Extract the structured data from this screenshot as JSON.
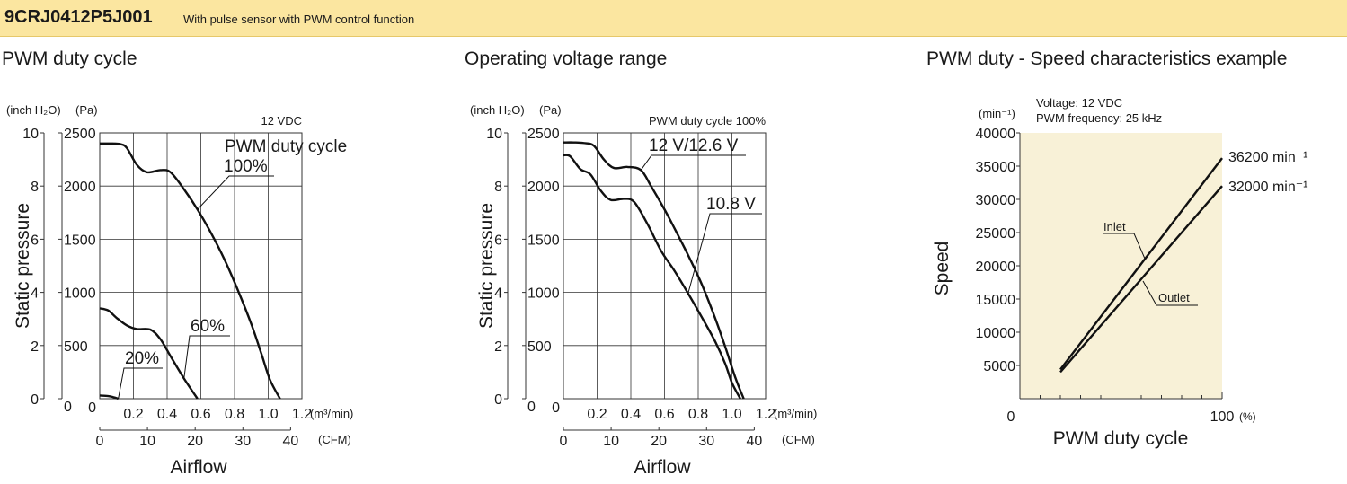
{
  "header": {
    "model": "9CRJ0412P5J001",
    "description": "With pulse sensor with PWM control function",
    "bg_color": "#fbe6a0"
  },
  "chart_data": [
    {
      "type": "line",
      "title": "PWM duty cycle",
      "annotation": "12 VDC",
      "legend_title": "PWM duty cycle",
      "xlabel": "Airflow",
      "ylabel": "Static pressure",
      "x_unit_primary": "(m³/min)",
      "x_unit_secondary": "(CFM)",
      "y_unit_primary": "(Pa)",
      "y_unit_secondary": "(inch H₂O)",
      "xlim": [
        0,
        1.2
      ],
      "ylim": [
        0,
        2500
      ],
      "x_ticks": [
        "0",
        "0.2",
        "0.4",
        "0.6",
        "0.8",
        "1.0",
        "1.2"
      ],
      "x_ticks_cfm": [
        "0",
        "10",
        "20",
        "30",
        "40"
      ],
      "y_ticks": [
        "0",
        "500",
        "1000",
        "1500",
        "2000",
        "2500"
      ],
      "y_ticks_inch": [
        "0",
        "2",
        "4",
        "6",
        "8",
        "10"
      ],
      "series": [
        {
          "name": "100%",
          "label_at": [
            1.0,
            2100
          ],
          "x": [
            0,
            0.06,
            0.12,
            0.16,
            0.22,
            0.28,
            0.36,
            0.42,
            0.5,
            0.58,
            0.66,
            0.74,
            0.82,
            0.9,
            0.96,
            1.01,
            1.07
          ],
          "y": [
            2400,
            2400,
            2395,
            2360,
            2200,
            2130,
            2150,
            2130,
            1970,
            1780,
            1560,
            1310,
            1020,
            700,
            420,
            180,
            0
          ]
        },
        {
          "name": "60%",
          "label_at": [
            0.59,
            630
          ],
          "x": [
            0,
            0.05,
            0.1,
            0.16,
            0.22,
            0.3,
            0.36,
            0.42,
            0.5,
            0.58
          ],
          "y": [
            850,
            830,
            760,
            690,
            655,
            650,
            560,
            400,
            190,
            0
          ]
        },
        {
          "name": "20%",
          "label_at": [
            0.26,
            370
          ],
          "x": [
            0,
            0.05,
            0.08,
            0.11
          ],
          "y": [
            30,
            25,
            15,
            0
          ]
        }
      ]
    },
    {
      "type": "line",
      "title": "Operating voltage range",
      "annotation": "PWM duty cycle 100%",
      "xlabel": "Airflow",
      "ylabel": "Static pressure",
      "x_unit_primary": "(m³/min)",
      "x_unit_secondary": "(CFM)",
      "y_unit_primary": "(Pa)",
      "y_unit_secondary": "(inch H₂O)",
      "xlim": [
        0,
        1.2
      ],
      "ylim": [
        0,
        2500
      ],
      "x_ticks": [
        "0",
        "0.2",
        "0.4",
        "0.6",
        "0.8",
        "1.0",
        "1.2"
      ],
      "x_ticks_cfm": [
        "0",
        "10",
        "20",
        "30",
        "40"
      ],
      "y_ticks": [
        "0",
        "500",
        "1000",
        "1500",
        "2000",
        "2500"
      ],
      "y_ticks_inch": [
        "0",
        "2",
        "4",
        "6",
        "8",
        "10"
      ],
      "series": [
        {
          "name": "12 V/12.6 V",
          "label_at": [
            0.76,
            2350
          ],
          "x": [
            0,
            0.06,
            0.12,
            0.18,
            0.24,
            0.3,
            0.38,
            0.46,
            0.52,
            0.6,
            0.66,
            0.74,
            0.82,
            0.9,
            0.96,
            1.02,
            1.07
          ],
          "y": [
            2410,
            2410,
            2405,
            2380,
            2250,
            2170,
            2180,
            2150,
            2000,
            1780,
            1600,
            1350,
            1080,
            760,
            490,
            200,
            0
          ]
        },
        {
          "name": "10.8 V",
          "label_at": [
            0.97,
            1820
          ],
          "x": [
            0,
            0.04,
            0.1,
            0.16,
            0.22,
            0.28,
            0.36,
            0.42,
            0.5,
            0.58,
            0.66,
            0.74,
            0.82,
            0.9,
            0.96,
            1.0,
            1.05
          ],
          "y": [
            2290,
            2280,
            2160,
            2110,
            1960,
            1870,
            1880,
            1850,
            1640,
            1390,
            1200,
            990,
            770,
            540,
            330,
            150,
            0
          ]
        }
      ]
    },
    {
      "type": "line",
      "title": "PWM duty - Speed characteristics example",
      "annotations": [
        "Voltage: 12 VDC",
        "PWM frequency: 25 kHz"
      ],
      "xlabel": "PWM duty cycle",
      "ylabel": "Speed",
      "x_unit": "(%)",
      "y_unit": "(min⁻¹)",
      "xlim": [
        0,
        100
      ],
      "ylim": [
        0,
        40000
      ],
      "x_ticks": [
        "0",
        "100"
      ],
      "y_ticks": [
        "5000",
        "10000",
        "15000",
        "20000",
        "25000",
        "30000",
        "35000",
        "40000"
      ],
      "end_labels": [
        "36200 min⁻¹",
        "32000 min⁻¹"
      ],
      "series": [
        {
          "name": "Inlet",
          "x": [
            20,
            100
          ],
          "y": [
            4400,
            36200
          ]
        },
        {
          "name": "Outlet",
          "x": [
            20,
            100
          ],
          "y": [
            4000,
            32000
          ]
        }
      ]
    }
  ]
}
